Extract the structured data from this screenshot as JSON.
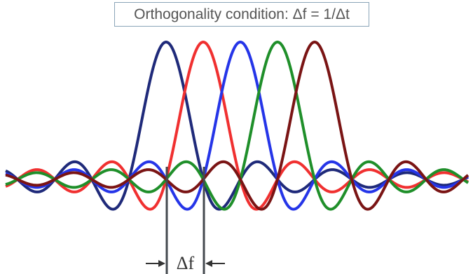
{
  "title": "Orthogonality condition: Δf = 1/Δt",
  "spacing_label": "Δf",
  "subcarriers": [
    {
      "name": "",
      "color": "#1f2a7a",
      "center_index": 0
    },
    {
      "name": "",
      "color": "#f03030",
      "center_index": 1
    },
    {
      "name": "",
      "color": "#2535e8",
      "center_index": 2
    },
    {
      "name": "",
      "color": "#1f8f2a",
      "center_index": 3
    },
    {
      "name": "",
      "color": "#7a1414",
      "center_index": 4
    }
  ],
  "waveform": "sinc",
  "marker_color": "#444a4f"
}
